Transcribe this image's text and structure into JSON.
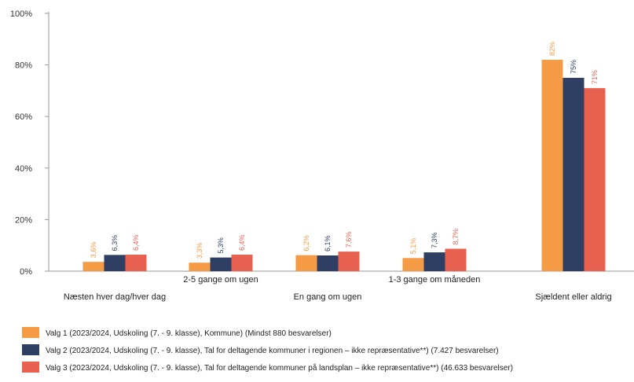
{
  "chart_data": {
    "type": "bar",
    "categories": [
      "Næsten hver dag/hver dag",
      "2-5 gange om ugen",
      "En gang om ugen",
      "1-3 gange om måneden",
      "Sjældent eller aldrig"
    ],
    "yticks": [
      "0%",
      "20%",
      "40%",
      "60%",
      "80%",
      "100%"
    ],
    "ylim": [
      0,
      100
    ],
    "series": [
      {
        "name": "Valg 1 (2023/2024, Udskoling (7. - 9. klasse), Kommune) (Mindst 880 besvarelser)",
        "color": "#f59a45",
        "values": [
          3.6,
          3.3,
          6.2,
          5.1,
          82
        ],
        "labels": [
          "3,6%",
          "3,3%",
          "6,2%",
          "5,1%",
          "82%"
        ]
      },
      {
        "name": "Valg 2 (2023/2024, Udskoling (7. - 9. klasse), Tal for deltagende kommuner i regionen – ikke repræsentative**) (7.427 besvarelser)",
        "color": "#2e3f63",
        "values": [
          6.3,
          5.3,
          6.1,
          7.3,
          75
        ],
        "labels": [
          "6,3%",
          "5,3%",
          "6,1%",
          "7,3%",
          "75%"
        ]
      },
      {
        "name": "Valg 3 (2023/2024, Udskoling (7. - 9. klasse), Tal for deltagende kommuner på landsplan – ikke repræsentative**) (46.633 besvarelser)",
        "color": "#e8604f",
        "values": [
          6.4,
          6.4,
          7.6,
          8.7,
          71
        ],
        "labels": [
          "6,4%",
          "6,4%",
          "7,6%",
          "8,7%",
          "71%"
        ]
      }
    ],
    "grid": false,
    "legend_position": "bottom"
  }
}
